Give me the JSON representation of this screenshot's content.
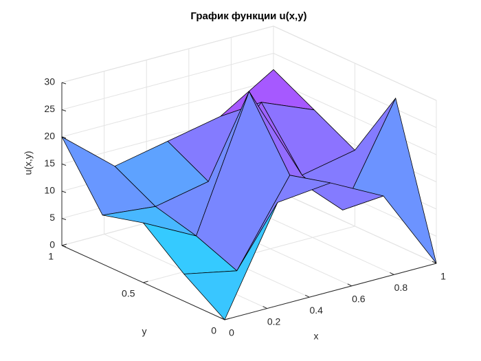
{
  "chart_data": {
    "type": "surface",
    "title": "График функции u(x,y)",
    "xlabel": "x",
    "ylabel": "y",
    "zlabel": "u(x,y)",
    "x": [
      0,
      0.25,
      0.5,
      0.75,
      1
    ],
    "y": [
      0,
      0.25,
      0.5,
      0.75,
      1
    ],
    "z": [
      [
        0,
        19,
        20,
        15,
        0
      ],
      [
        5,
        3,
        18,
        9,
        27
      ],
      [
        11,
        6,
        30,
        12,
        14
      ],
      [
        9,
        8,
        10,
        22,
        18
      ],
      [
        20,
        12,
        14,
        16,
        22
      ]
    ],
    "xlim": [
      0,
      1
    ],
    "ylim": [
      0,
      1
    ],
    "zlim": [
      0,
      30
    ],
    "xticks": [
      0,
      0.2,
      0.4,
      0.6,
      0.8,
      1
    ],
    "yticks": [
      0,
      0.5,
      1
    ],
    "zticks": [
      0,
      5,
      10,
      15,
      20,
      25,
      30
    ],
    "grid": true,
    "colormap": "cool"
  }
}
